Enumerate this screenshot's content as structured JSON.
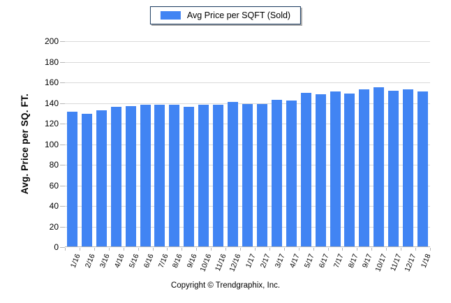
{
  "legend": {
    "label": "Avg Price per SQFT (Sold)"
  },
  "footer": {
    "copyright": "Copyright © Trendgraphix, Inc."
  },
  "colors": {
    "bar": "#4184f3",
    "grid": "#d9d9d9",
    "axis": "#b7b7b7",
    "legend_border": "#17375d",
    "legend_shadow": "#aaaaaa",
    "text": "#000000"
  },
  "chart_data": {
    "type": "bar",
    "title": "Avg Price per SQFT (Sold)",
    "categories": [
      "1/16",
      "2/16",
      "3/16",
      "4/16",
      "5/16",
      "6/16",
      "7/16",
      "8/16",
      "9/16",
      "10/16",
      "11/16",
      "12/16",
      "1/17",
      "2/17",
      "3/17",
      "4/17",
      "5/17",
      "6/17",
      "7/17",
      "8/17",
      "9/17",
      "10/17",
      "11/17",
      "12/17",
      "1/18"
    ],
    "values": [
      131,
      129,
      133,
      136,
      137,
      138,
      138,
      138,
      136,
      138,
      138,
      141,
      139,
      139,
      143,
      142,
      150,
      148,
      151,
      149,
      153,
      155,
      152,
      153,
      151
    ],
    "xlabel": "",
    "ylabel": "Avg. Price per SQ. FT.",
    "ylim": [
      0,
      200
    ],
    "ytick_step": 20,
    "grid": true,
    "legend_position": "top-center"
  }
}
